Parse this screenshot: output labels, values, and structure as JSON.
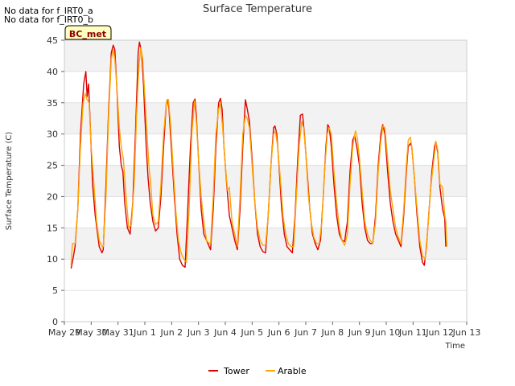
{
  "notes": [
    "No data for f_IRT0_a",
    "No data for f_IRT0_b"
  ],
  "station_badge": "BC_met",
  "chart_data": {
    "type": "line",
    "title": "Surface Temperature",
    "xlabel": "Time",
    "ylabel": "Surface Temperature (C)",
    "ylim": [
      0,
      45
    ],
    "yticks": [
      0,
      5,
      10,
      15,
      20,
      25,
      30,
      35,
      40,
      45
    ],
    "xlim_days": [
      0,
      15
    ],
    "xtick_labels": [
      "May 29",
      "May 30",
      "May 31",
      "Jun 1",
      "Jun 2",
      "Jun 3",
      "Jun 4",
      "Jun 5",
      "Jun 6",
      "Jun 7",
      "Jun 8",
      "Jun 9",
      "Jun 10",
      "Jun 11",
      "Jun 12",
      "Jun 13"
    ],
    "grid": true,
    "legend": "bottom-center",
    "series": [
      {
        "name": "Tower",
        "color": "#dd0000",
        "points": [
          [
            0.25,
            8.5
          ],
          [
            0.3,
            9.5
          ],
          [
            0.4,
            12
          ],
          [
            0.5,
            18
          ],
          [
            0.6,
            30
          ],
          [
            0.72,
            38
          ],
          [
            0.8,
            40
          ],
          [
            0.85,
            36
          ],
          [
            0.9,
            38
          ],
          [
            0.95,
            33
          ],
          [
            1.05,
            22
          ],
          [
            1.15,
            17
          ],
          [
            1.3,
            12
          ],
          [
            1.4,
            11
          ],
          [
            1.45,
            11.5
          ],
          [
            1.55,
            22
          ],
          [
            1.65,
            34
          ],
          [
            1.75,
            43
          ],
          [
            1.82,
            44.2
          ],
          [
            1.88,
            43.5
          ],
          [
            1.95,
            38
          ],
          [
            2.05,
            28
          ],
          [
            2.12,
            25
          ],
          [
            2.18,
            24
          ],
          [
            2.25,
            19
          ],
          [
            2.35,
            15
          ],
          [
            2.45,
            14
          ],
          [
            2.55,
            19
          ],
          [
            2.65,
            30
          ],
          [
            2.75,
            43
          ],
          [
            2.8,
            44.7
          ],
          [
            2.88,
            43
          ],
          [
            2.95,
            38
          ],
          [
            3.0,
            33
          ],
          [
            3.05,
            28
          ],
          [
            3.12,
            23
          ],
          [
            3.2,
            19
          ],
          [
            3.3,
            16
          ],
          [
            3.4,
            14.5
          ],
          [
            3.5,
            15
          ],
          [
            3.6,
            20
          ],
          [
            3.7,
            28
          ],
          [
            3.8,
            35
          ],
          [
            3.85,
            35.5
          ],
          [
            3.9,
            34
          ],
          [
            4.0,
            27
          ],
          [
            4.1,
            20
          ],
          [
            4.2,
            14
          ],
          [
            4.3,
            10
          ],
          [
            4.4,
            9
          ],
          [
            4.5,
            8.7
          ],
          [
            4.6,
            18
          ],
          [
            4.7,
            28
          ],
          [
            4.8,
            35
          ],
          [
            4.87,
            35.6
          ],
          [
            4.92,
            33
          ],
          [
            5.0,
            26
          ],
          [
            5.1,
            18
          ],
          [
            5.2,
            14
          ],
          [
            5.3,
            13
          ],
          [
            5.4,
            12
          ],
          [
            5.45,
            11.5
          ],
          [
            5.55,
            18
          ],
          [
            5.65,
            28
          ],
          [
            5.75,
            35
          ],
          [
            5.82,
            35.7
          ],
          [
            5.88,
            34
          ],
          [
            5.95,
            28
          ],
          [
            6.05,
            22
          ],
          [
            6.15,
            17
          ],
          [
            6.25,
            15
          ],
          [
            6.35,
            13
          ],
          [
            6.45,
            11.5
          ],
          [
            6.55,
            18
          ],
          [
            6.65,
            28
          ],
          [
            6.75,
            35.5
          ],
          [
            6.82,
            34
          ],
          [
            6.9,
            32
          ],
          [
            7.0,
            26
          ],
          [
            7.1,
            19
          ],
          [
            7.2,
            14
          ],
          [
            7.3,
            12
          ],
          [
            7.4,
            11.2
          ],
          [
            7.5,
            11
          ],
          [
            7.6,
            17
          ],
          [
            7.7,
            25
          ],
          [
            7.8,
            31
          ],
          [
            7.85,
            31.3
          ],
          [
            7.92,
            30
          ],
          [
            8.0,
            25
          ],
          [
            8.1,
            18
          ],
          [
            8.2,
            14
          ],
          [
            8.3,
            12
          ],
          [
            8.4,
            11.5
          ],
          [
            8.5,
            11
          ],
          [
            8.6,
            17
          ],
          [
            8.7,
            26
          ],
          [
            8.8,
            33
          ],
          [
            8.88,
            33.2
          ],
          [
            8.95,
            30
          ],
          [
            9.05,
            24
          ],
          [
            9.15,
            18
          ],
          [
            9.25,
            14
          ],
          [
            9.35,
            12.5
          ],
          [
            9.45,
            11.5
          ],
          [
            9.55,
            13
          ],
          [
            9.65,
            20
          ],
          [
            9.75,
            28
          ],
          [
            9.82,
            31.5
          ],
          [
            9.88,
            31
          ],
          [
            9.95,
            28
          ],
          [
            10.05,
            22
          ],
          [
            10.15,
            17
          ],
          [
            10.25,
            14
          ],
          [
            10.35,
            13
          ],
          [
            10.45,
            12.8
          ],
          [
            10.55,
            16
          ],
          [
            10.65,
            24
          ],
          [
            10.75,
            29
          ],
          [
            10.82,
            29.8
          ],
          [
            10.9,
            28
          ],
          [
            11.0,
            25
          ],
          [
            11.1,
            19
          ],
          [
            11.2,
            15
          ],
          [
            11.3,
            13
          ],
          [
            11.4,
            12.5
          ],
          [
            11.5,
            12.5
          ],
          [
            11.6,
            17
          ],
          [
            11.7,
            25
          ],
          [
            11.8,
            30
          ],
          [
            11.87,
            31.5
          ],
          [
            11.95,
            30
          ],
          [
            12.05,
            24
          ],
          [
            12.15,
            19
          ],
          [
            12.25,
            16
          ],
          [
            12.35,
            14
          ],
          [
            12.45,
            13
          ],
          [
            12.55,
            12
          ],
          [
            12.65,
            17
          ],
          [
            12.75,
            24
          ],
          [
            12.82,
            28
          ],
          [
            12.9,
            28.5
          ],
          [
            12.95,
            28
          ],
          [
            13.05,
            23
          ],
          [
            13.15,
            17
          ],
          [
            13.25,
            12
          ],
          [
            13.35,
            9.5
          ],
          [
            13.42,
            9
          ],
          [
            13.5,
            12
          ],
          [
            13.6,
            18
          ],
          [
            13.7,
            24
          ],
          [
            13.8,
            28
          ],
          [
            13.85,
            28.8
          ],
          [
            13.92,
            27
          ],
          [
            14.0,
            21.5
          ],
          [
            14.1,
            18
          ],
          [
            14.18,
            16.5
          ],
          [
            14.22,
            12
          ]
        ]
      },
      {
        "name": "Arable",
        "color": "#ffa500",
        "points": [
          [
            0.25,
            9
          ],
          [
            0.3,
            12.5
          ],
          [
            0.4,
            12.5
          ],
          [
            0.5,
            18
          ],
          [
            0.6,
            28
          ],
          [
            0.7,
            35
          ],
          [
            0.78,
            36.5
          ],
          [
            0.85,
            35.5
          ],
          [
            0.92,
            35
          ],
          [
            1.0,
            28
          ],
          [
            1.1,
            22
          ],
          [
            1.2,
            16
          ],
          [
            1.3,
            13
          ],
          [
            1.4,
            12
          ],
          [
            1.45,
            12
          ],
          [
            1.55,
            20
          ],
          [
            1.65,
            33
          ],
          [
            1.75,
            42
          ],
          [
            1.82,
            43.5
          ],
          [
            1.88,
            42
          ],
          [
            1.95,
            38
          ],
          [
            2.05,
            31
          ],
          [
            2.12,
            28
          ],
          [
            2.2,
            26
          ],
          [
            2.3,
            20
          ],
          [
            2.4,
            15
          ],
          [
            2.5,
            15.5
          ],
          [
            2.6,
            22
          ],
          [
            2.7,
            34
          ],
          [
            2.78,
            41
          ],
          [
            2.85,
            43.8
          ],
          [
            2.92,
            42
          ],
          [
            3.0,
            36
          ],
          [
            3.08,
            30
          ],
          [
            3.15,
            25
          ],
          [
            3.22,
            22
          ],
          [
            3.3,
            17
          ],
          [
            3.4,
            15.5
          ],
          [
            3.5,
            16
          ],
          [
            3.6,
            22
          ],
          [
            3.7,
            30
          ],
          [
            3.8,
            35
          ],
          [
            3.88,
            35.5
          ],
          [
            3.95,
            32
          ],
          [
            4.05,
            25
          ],
          [
            4.15,
            18
          ],
          [
            4.25,
            13
          ],
          [
            4.35,
            11
          ],
          [
            4.45,
            10
          ],
          [
            4.55,
            9.5
          ],
          [
            4.65,
            18
          ],
          [
            4.75,
            30
          ],
          [
            4.85,
            35.3
          ],
          [
            4.92,
            32
          ],
          [
            5.0,
            26
          ],
          [
            5.1,
            20
          ],
          [
            5.2,
            16
          ],
          [
            5.3,
            13
          ],
          [
            5.4,
            12.5
          ],
          [
            5.45,
            12.5
          ],
          [
            5.55,
            20
          ],
          [
            5.65,
            30
          ],
          [
            5.75,
            34
          ],
          [
            5.82,
            35
          ],
          [
            5.9,
            31
          ],
          [
            6.0,
            25
          ],
          [
            6.08,
            21
          ],
          [
            6.15,
            21.5
          ],
          [
            6.25,
            16
          ],
          [
            6.35,
            14
          ],
          [
            6.45,
            12
          ],
          [
            6.55,
            20
          ],
          [
            6.65,
            30
          ],
          [
            6.75,
            33
          ],
          [
            6.82,
            32.5
          ],
          [
            6.9,
            31
          ],
          [
            7.0,
            25
          ],
          [
            7.1,
            19
          ],
          [
            7.2,
            15
          ],
          [
            7.3,
            13
          ],
          [
            7.4,
            12.2
          ],
          [
            7.5,
            12.2
          ],
          [
            7.6,
            17
          ],
          [
            7.7,
            25
          ],
          [
            7.8,
            30
          ],
          [
            7.87,
            30.5
          ],
          [
            7.95,
            28
          ],
          [
            8.05,
            23
          ],
          [
            8.15,
            17
          ],
          [
            8.25,
            14
          ],
          [
            8.35,
            12.5
          ],
          [
            8.45,
            12
          ],
          [
            8.55,
            12
          ],
          [
            8.65,
            20
          ],
          [
            8.75,
            28
          ],
          [
            8.85,
            32
          ],
          [
            8.92,
            31
          ],
          [
            9.0,
            27
          ],
          [
            9.1,
            20
          ],
          [
            9.2,
            16
          ],
          [
            9.3,
            13.5
          ],
          [
            9.4,
            12.5
          ],
          [
            9.5,
            12.5
          ],
          [
            9.6,
            16
          ],
          [
            9.7,
            24
          ],
          [
            9.8,
            30
          ],
          [
            9.87,
            31
          ],
          [
            9.95,
            30
          ],
          [
            10.05,
            24
          ],
          [
            10.15,
            19
          ],
          [
            10.25,
            15
          ],
          [
            10.35,
            13
          ],
          [
            10.45,
            12.2
          ],
          [
            10.55,
            14
          ],
          [
            10.65,
            22
          ],
          [
            10.75,
            28
          ],
          [
            10.85,
            30.5
          ],
          [
            10.92,
            29.5
          ],
          [
            11.0,
            26
          ],
          [
            11.1,
            21
          ],
          [
            11.2,
            16
          ],
          [
            11.3,
            14
          ],
          [
            11.4,
            13
          ],
          [
            11.5,
            12.5
          ],
          [
            11.6,
            16
          ],
          [
            11.7,
            24
          ],
          [
            11.8,
            29
          ],
          [
            11.88,
            31.3
          ],
          [
            11.95,
            31
          ],
          [
            12.05,
            26
          ],
          [
            12.15,
            21
          ],
          [
            12.25,
            18
          ],
          [
            12.35,
            15
          ],
          [
            12.45,
            13.5
          ],
          [
            12.55,
            12.5
          ],
          [
            12.65,
            18
          ],
          [
            12.75,
            25
          ],
          [
            12.82,
            29
          ],
          [
            12.9,
            29.5
          ],
          [
            12.95,
            28
          ],
          [
            13.05,
            23
          ],
          [
            13.15,
            18
          ],
          [
            13.25,
            13
          ],
          [
            13.35,
            10.5
          ],
          [
            13.45,
            10
          ],
          [
            13.55,
            15
          ],
          [
            13.65,
            21
          ],
          [
            13.75,
            25
          ],
          [
            13.85,
            28.8
          ],
          [
            13.92,
            27.5
          ],
          [
            14.0,
            22
          ],
          [
            14.1,
            21.5
          ],
          [
            14.18,
            17
          ],
          [
            14.22,
            16
          ],
          [
            14.26,
            12
          ]
        ]
      }
    ]
  }
}
